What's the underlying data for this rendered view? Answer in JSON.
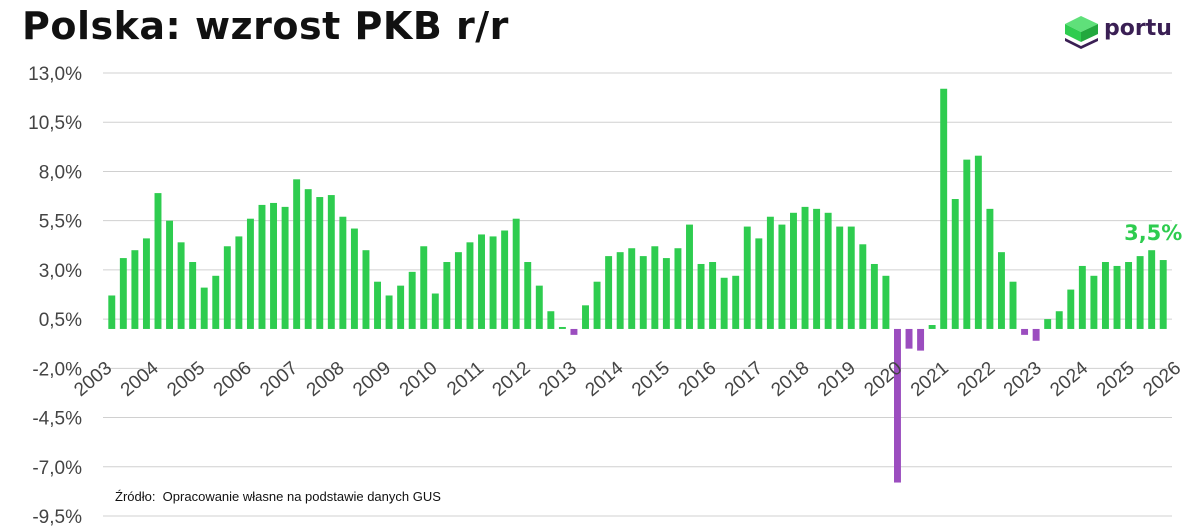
{
  "page": {
    "title": "Polska: wzrost PKB r/r",
    "source": "Źródło:  Opracowanie własne na podstawie danych GUS",
    "logo_text": "portu"
  },
  "colors": {
    "positive": "#2ecc4f",
    "negative": "#9b4dbf",
    "annotation": "#2ecc4f",
    "grid": "#d0d0d0",
    "logo_green": "#2ecc4f",
    "logo_dark": "#3a1f54"
  },
  "chart_data": {
    "type": "bar",
    "title": "Polska: wzrost PKB r/r",
    "xlabel": "",
    "ylabel": "",
    "ylim": [
      -9.5,
      13.0
    ],
    "y_ticks": [
      "13,0%",
      "10,5%",
      "8,0%",
      "5,5%",
      "3,0%",
      "0,5%",
      "-2,0%",
      "-4,5%",
      "-7,0%",
      "-9,5%"
    ],
    "y_tick_values": [
      13.0,
      10.5,
      8.0,
      5.5,
      3.0,
      0.5,
      -2.0,
      -4.5,
      -7.0,
      -9.5
    ],
    "x_ticks": [
      "2003",
      "2004",
      "2005",
      "2006",
      "2007",
      "2008",
      "2009",
      "2010",
      "2011",
      "2012",
      "2013",
      "2014",
      "2015",
      "2016",
      "2017",
      "2018",
      "2019",
      "2020",
      "2021",
      "2022",
      "2023",
      "2024",
      "2025",
      "2026"
    ],
    "grid": true,
    "values": [
      1.7,
      3.6,
      4.0,
      4.6,
      6.9,
      5.5,
      4.4,
      3.4,
      2.1,
      2.7,
      4.2,
      4.7,
      5.6,
      6.3,
      6.4,
      6.2,
      7.6,
      7.1,
      6.7,
      6.8,
      5.7,
      5.1,
      4.0,
      2.4,
      1.7,
      2.2,
      2.9,
      4.2,
      1.8,
      3.4,
      3.9,
      4.4,
      4.8,
      4.7,
      5.0,
      5.6,
      3.4,
      2.2,
      0.9,
      0.1,
      -0.3,
      1.2,
      2.4,
      3.7,
      3.9,
      4.1,
      3.7,
      4.2,
      3.6,
      4.1,
      5.3,
      3.3,
      3.4,
      2.6,
      2.7,
      5.2,
      4.6,
      5.7,
      5.3,
      5.9,
      6.2,
      6.1,
      5.9,
      5.2,
      5.2,
      4.3,
      3.3,
      2.7,
      -7.8,
      -1.0,
      -1.1,
      0.2,
      12.2,
      6.6,
      8.6,
      8.8,
      6.1,
      3.9,
      2.4,
      -0.3,
      -0.6,
      0.5,
      0.9,
      2.0,
      3.2,
      2.7,
      3.4,
      3.2,
      3.4,
      3.7,
      4.0,
      3.5
    ],
    "annotation": "3,5%"
  }
}
